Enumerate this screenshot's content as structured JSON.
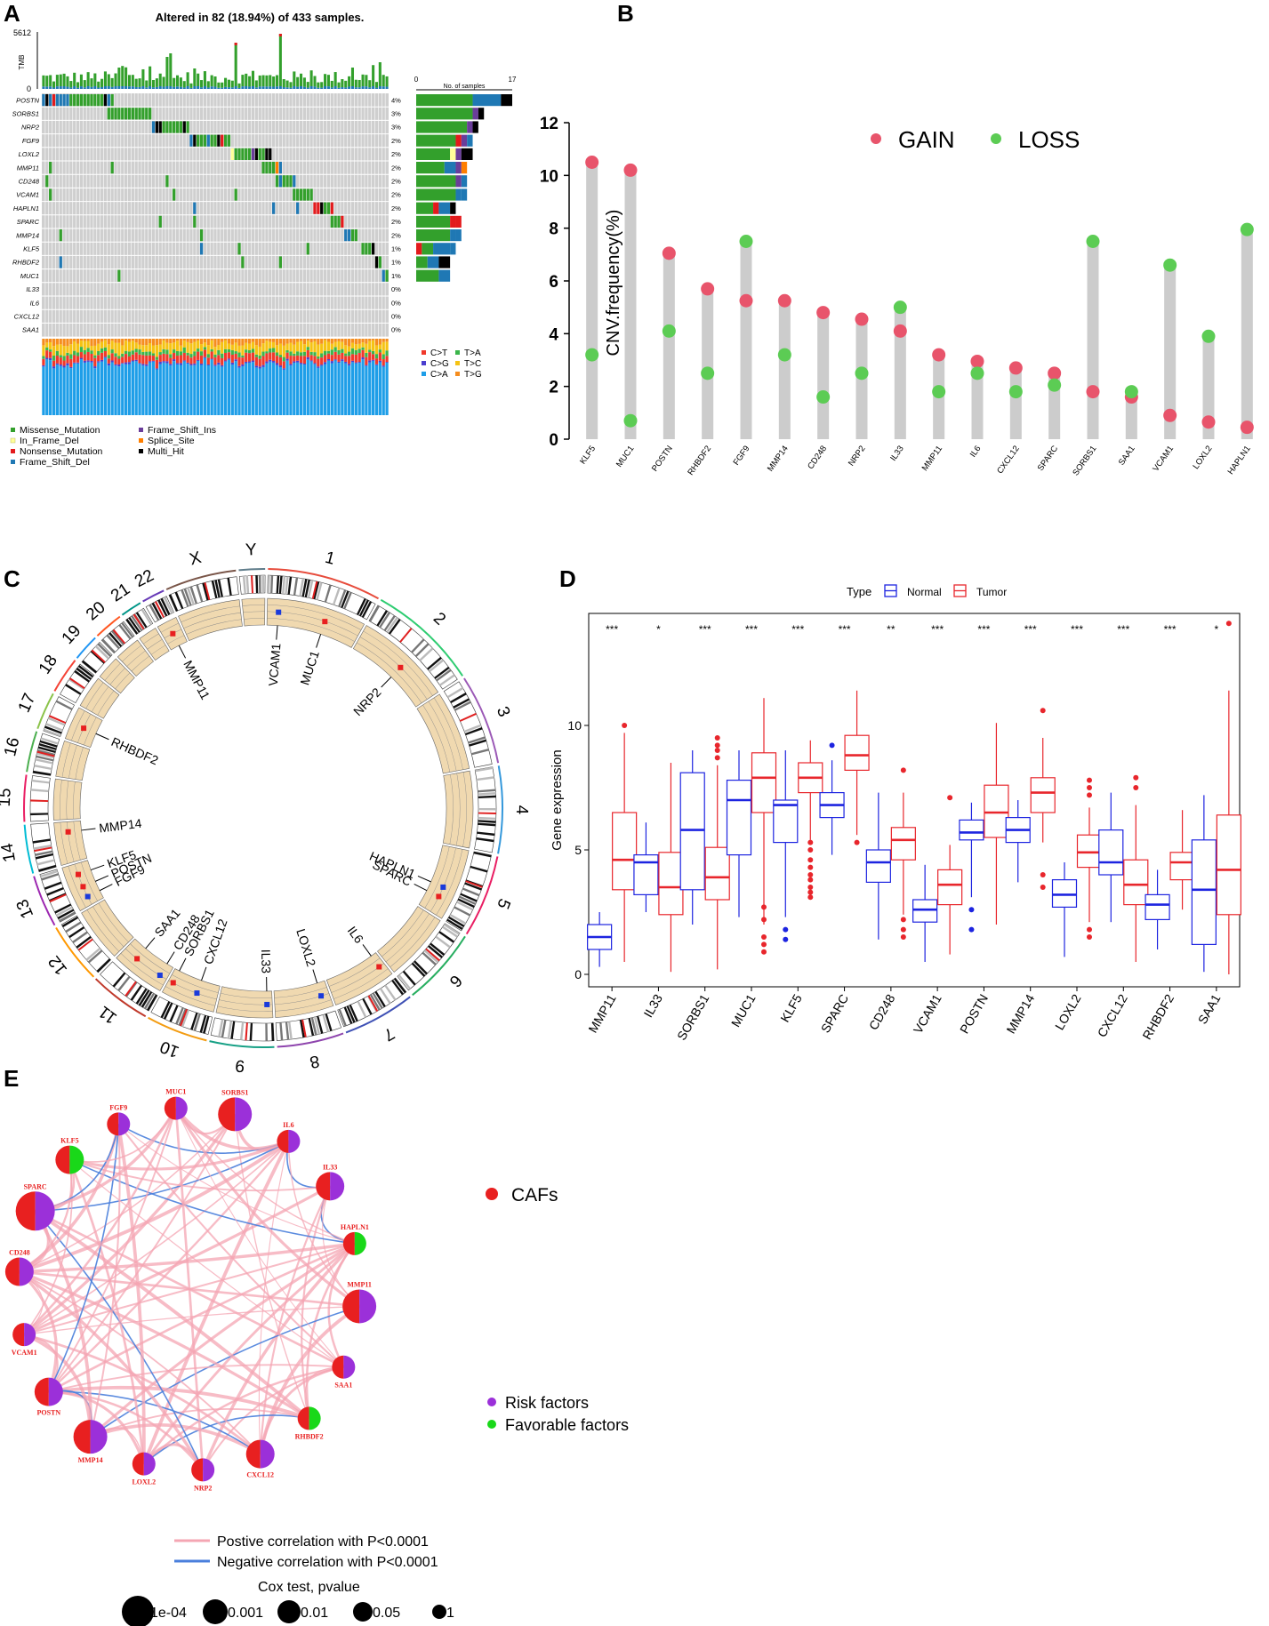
{
  "panels": {
    "a": "A",
    "b": "B",
    "c": "C",
    "d": "D",
    "e": "E"
  },
  "chart_data": [
    {
      "panel": "A",
      "type": "oncoplot",
      "title": "Altered in 82 (18.94%) of 433 samples.",
      "tmb_label": "TMB",
      "tmb_max": "5612",
      "tmb_min": "0",
      "side_axis_label": "No. of samples",
      "side_axis_min": "0",
      "side_axis_max": "17",
      "genes": [
        "POSTN",
        "SORBS1",
        "NRP2",
        "FGF9",
        "LOXL2",
        "MMP11",
        "CD248",
        "VCAM1",
        "HAPLN1",
        "SPARC",
        "MMP14",
        "KLF5",
        "RHBDF2",
        "MUC1",
        "IL33",
        "IL6",
        "CXCL12",
        "SAA1"
      ],
      "percent": [
        "4%",
        "3%",
        "3%",
        "2%",
        "2%",
        "2%",
        "2%",
        "2%",
        "2%",
        "2%",
        "2%",
        "1%",
        "1%",
        "1%",
        "0%",
        "0%",
        "0%",
        "0%"
      ],
      "counts": [
        17,
        12,
        11,
        10,
        10,
        9,
        9,
        9,
        8,
        8,
        8,
        7,
        6,
        6,
        0,
        0,
        0,
        0
      ],
      "variant_legend": [
        "Missense_Mutation",
        "In_Frame_Del",
        "Nonsense_Mutation",
        "Frame_Shift_Del",
        "Frame_Shift_Ins",
        "Splice_Site",
        "Multi_Hit"
      ],
      "variant_colors": [
        "#33a02c",
        "#ffff99",
        "#e31a1c",
        "#1f78b4",
        "#6a3d9a",
        "#ff7f00",
        "#000000"
      ],
      "titv_legend": [
        "C>T",
        "C>G",
        "C>A",
        "T>A",
        "T>C",
        "T>G"
      ],
      "titv_colors": [
        "#f0382b",
        "#4b3fcf",
        "#1e9ee8",
        "#3bb54a",
        "#f5c314",
        "#f58d1e"
      ]
    },
    {
      "panel": "B",
      "type": "dumbbell",
      "ylabel": "CNV.frequency(%)",
      "ylim": [
        0,
        12
      ],
      "yticks": [
        "0",
        "2",
        "4",
        "6",
        "8",
        "10",
        "12"
      ],
      "legend": [
        "GAIN",
        "LOSS"
      ],
      "gain_color": "#e8546b",
      "loss_color": "#5ccc54",
      "categories": [
        "KLF5",
        "MUC1",
        "POSTN",
        "RHBDF2",
        "FGF9",
        "MMP14",
        "CD248",
        "NRP2",
        "IL33",
        "MMP11",
        "IL6",
        "CXCL12",
        "SPARC",
        "SORBS1",
        "SAA1",
        "VCAM1",
        "LOXL2",
        "HAPLN1"
      ],
      "gain": [
        10.5,
        10.2,
        7.05,
        5.7,
        5.25,
        5.25,
        4.8,
        4.55,
        4.1,
        3.2,
        2.95,
        2.7,
        2.5,
        1.8,
        1.6,
        0.9,
        0.65,
        0.45
      ],
      "loss": [
        3.2,
        0.7,
        4.1,
        2.5,
        7.5,
        3.2,
        1.6,
        2.5,
        5.0,
        1.8,
        2.5,
        1.8,
        2.05,
        7.5,
        1.8,
        6.6,
        3.9,
        7.95
      ]
    },
    {
      "panel": "C",
      "type": "circos",
      "chromosomes": [
        "1",
        "2",
        "3",
        "4",
        "5",
        "6",
        "7",
        "8",
        "9",
        "10",
        "11",
        "12",
        "13",
        "14",
        "15",
        "16",
        "17",
        "18",
        "19",
        "20",
        "21",
        "22",
        "X",
        "Y"
      ],
      "gene_labels": [
        "VCAM1",
        "MUC1",
        "NRP2",
        "HAPLN1",
        "SPARC",
        "IL6",
        "LOXL2",
        "IL33",
        "CXCL12",
        "SORBS1",
        "SAA1",
        "CD248",
        "FGF9",
        "POSTN",
        "KLF5",
        "MMP14",
        "RHBDF2",
        "MMP11"
      ]
    },
    {
      "panel": "D",
      "type": "boxplot",
      "legend_title": "Type",
      "legend": [
        "Normal",
        "Tumor"
      ],
      "colors": {
        "normal": "#1d24e0",
        "tumor": "#e8262c"
      },
      "ylabel": "Gene expression",
      "ylim": [
        -0.5,
        14.5
      ],
      "yticks": [
        "0",
        "5",
        "10"
      ],
      "categories": [
        "MMP11",
        "IL33",
        "SORBS1",
        "MUC1",
        "KLF5",
        "SPARC",
        "CD248",
        "VCAM1",
        "POSTN",
        "MMP14",
        "LOXL2",
        "CXCL12",
        "RHBDF2",
        "SAA1"
      ],
      "significance": [
        "***",
        "*",
        "***",
        "***",
        "***",
        "***",
        "**",
        "***",
        "***",
        "***",
        "***",
        "***",
        "***",
        "*"
      ],
      "normal": [
        [
          0.3,
          1.0,
          1.5,
          2.0,
          2.5
        ],
        [
          2.5,
          3.2,
          4.5,
          4.8,
          6.1
        ],
        [
          2.0,
          3.4,
          5.8,
          8.1,
          9.0
        ],
        [
          2.3,
          4.8,
          7.0,
          7.8,
          9.0
        ],
        [
          2.3,
          5.3,
          6.8,
          7.0,
          9.0
        ],
        [
          4.8,
          6.3,
          6.8,
          7.3,
          8.6
        ],
        [
          1.4,
          3.7,
          4.5,
          5.0,
          7.3
        ],
        [
          0.5,
          2.1,
          2.6,
          3.0,
          4.4
        ],
        [
          3.1,
          5.4,
          5.7,
          6.2,
          6.9
        ],
        [
          3.7,
          5.3,
          5.8,
          6.3,
          7.0
        ],
        [
          0.7,
          2.7,
          3.2,
          3.8,
          4.5
        ],
        [
          2.1,
          4.0,
          4.5,
          5.8,
          7.3
        ],
        [
          1.0,
          2.2,
          2.8,
          3.2,
          4.2
        ],
        [
          0.1,
          1.2,
          3.4,
          5.4,
          7.2
        ]
      ],
      "tumor": [
        [
          0.5,
          3.4,
          4.6,
          6.5,
          9.7
        ],
        [
          0.1,
          2.4,
          3.5,
          4.9,
          8.5
        ],
        [
          0.2,
          3.0,
          3.9,
          5.1,
          8.4
        ],
        [
          2.0,
          6.5,
          7.9,
          8.9,
          11.1
        ],
        [
          5.4,
          7.3,
          7.9,
          8.5,
          9.4
        ],
        [
          5.6,
          8.2,
          8.8,
          9.6,
          11.4
        ],
        [
          2.4,
          4.6,
          5.4,
          5.9,
          7.3
        ],
        [
          0.8,
          2.8,
          3.6,
          4.2,
          5.2
        ],
        [
          2.0,
          5.5,
          6.5,
          7.6,
          10.1
        ],
        [
          5.3,
          6.5,
          7.3,
          7.9,
          9.5
        ],
        [
          2.1,
          4.3,
          4.9,
          5.6,
          6.7
        ],
        [
          0.5,
          2.8,
          3.6,
          4.6,
          6.8
        ],
        [
          2.6,
          3.8,
          4.5,
          4.9,
          6.6
        ],
        [
          0.0,
          2.4,
          4.2,
          6.4,
          11.4
        ]
      ],
      "outliers_normal": [
        [],
        [],
        [],
        [],
        [
          1.8,
          1.4
        ],
        [
          9.2
        ],
        [],
        [],
        [
          2.6,
          1.8
        ],
        [],
        [],
        [],
        [],
        []
      ],
      "outliers_tumor": [
        [
          10.0
        ],
        [],
        [
          9.5,
          9.2,
          9.0,
          8.7
        ],
        [
          2.7,
          2.2,
          1.5,
          1.2,
          0.9
        ],
        [
          5.3,
          5.0,
          4.6,
          4.3,
          4.0,
          3.8,
          3.5,
          3.3,
          3.1
        ],
        [
          5.3
        ],
        [
          8.2,
          2.2,
          1.8,
          1.5
        ],
        [
          7.1
        ],
        [],
        [
          10.6,
          4.0,
          3.5
        ],
        [
          7.8,
          7.5,
          7.2,
          1.8,
          1.5
        ],
        [
          7.9,
          7.5
        ],
        [],
        [
          14.1
        ]
      ]
    },
    {
      "panel": "E",
      "type": "network",
      "nodes": [
        "SORBS1",
        "IL6",
        "IL33",
        "HAPLN1",
        "MMP11",
        "SAA1",
        "RHBDF2",
        "CXCL12",
        "NRP2",
        "LOXL2",
        "MMP14",
        "POSTN",
        "VCAM1",
        "CD248",
        "SPARC",
        "KLF5",
        "FGF9",
        "MUC1"
      ],
      "node_risk": [
        true,
        true,
        true,
        false,
        true,
        true,
        false,
        true,
        true,
        true,
        true,
        true,
        true,
        true,
        true,
        false,
        true,
        true
      ],
      "node_size": [
        4,
        2,
        3,
        2,
        4,
        2,
        2,
        3,
        2,
        2,
        4,
        3,
        2,
        3,
        5,
        3,
        2,
        2
      ],
      "legend_group": "CAFs",
      "legend_factors": [
        "Risk factors",
        "Favorable factors"
      ],
      "legend_edges": [
        "Postive correlation with P<0.0001",
        "Negative correlation with P<0.0001"
      ],
      "size_title": "Cox test, pvalue",
      "size_labels": [
        "1e-04",
        "0.001",
        "0.01",
        "0.05",
        "1"
      ],
      "colors": {
        "caf": "#e82020",
        "risk": "#9b30d9",
        "favorable": "#19d819",
        "positive": "#f4a6b3",
        "negative": "#4a7fdc"
      }
    }
  ]
}
